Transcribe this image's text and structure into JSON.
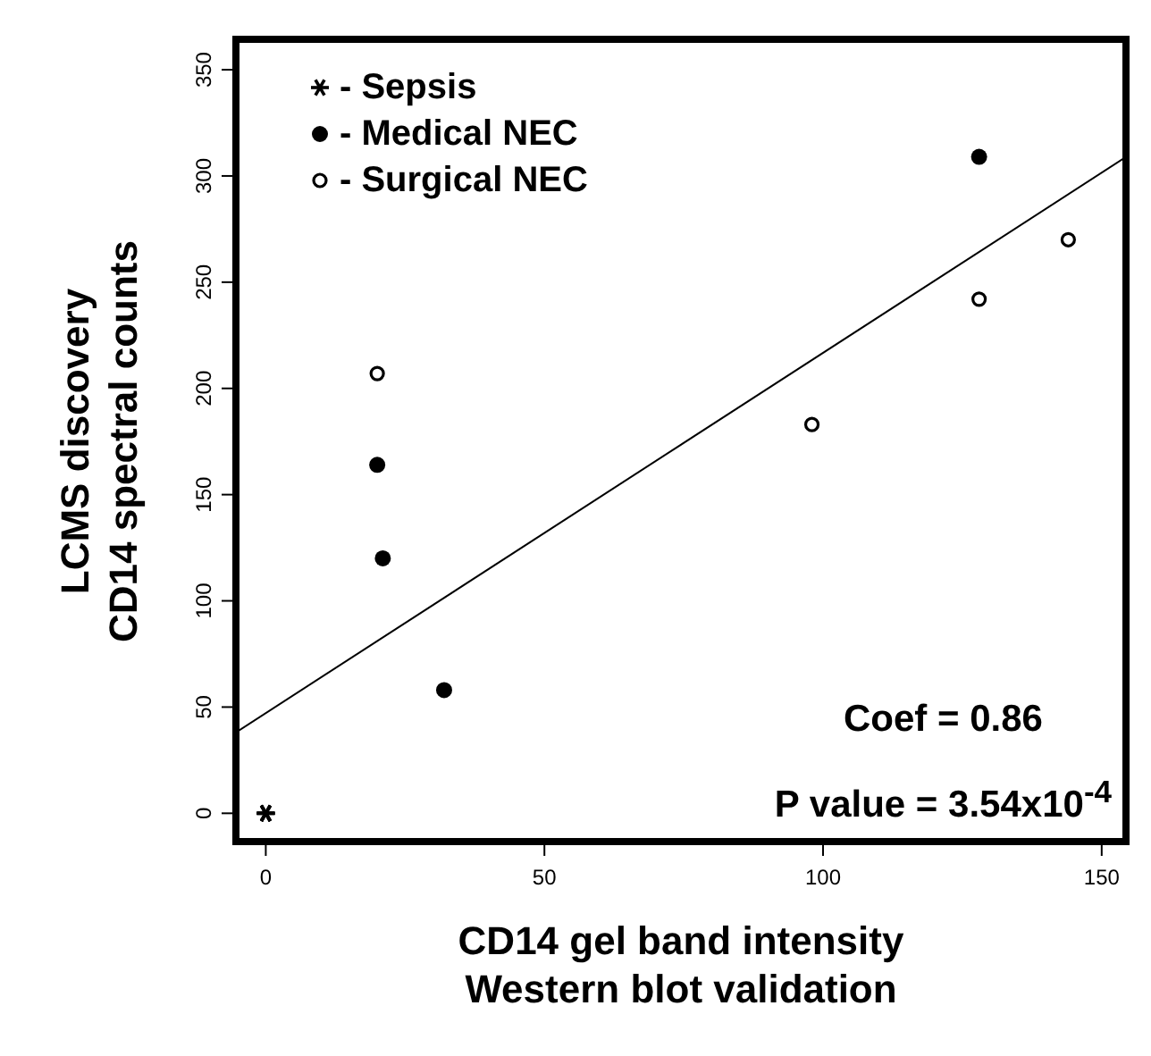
{
  "chart_data": {
    "type": "scatter",
    "xlabel": "CD14 gel band intensity\nWestern blot validation",
    "ylabel": "LCMS discovery\nCD14 spectral counts",
    "xlim": [
      -6,
      155
    ],
    "ylim": [
      -15,
      366
    ],
    "xticks": [
      0,
      50,
      100,
      150
    ],
    "yticks": [
      0,
      50,
      100,
      150,
      200,
      250,
      300,
      350
    ],
    "legend": "top left",
    "series": [
      {
        "name": "- Sepsis",
        "color": "#000000",
        "marker": "cross",
        "x": [
          0,
          0,
          0,
          0
        ],
        "values": [
          0,
          0,
          0,
          0
        ]
      },
      {
        "name": "- Medical NEC",
        "color": "#000000",
        "marker": "circle",
        "x": [
          20,
          21,
          32,
          128
        ],
        "values": [
          164,
          120,
          58,
          309
        ]
      },
      {
        "name": "- Surgical NEC",
        "color": "#000000",
        "marker": "open_circle",
        "x": [
          20,
          98,
          128,
          144
        ],
        "values": [
          207,
          183,
          242,
          270
        ]
      },
      {
        "type": "line",
        "color": "#000000",
        "marker": "none",
        "line_style": "solid",
        "x": [
          -6,
          155
        ],
        "values": [
          37,
          310
        ]
      }
    ],
    "annotations": [
      "Coef = 0.86",
      "P value = 3.54x10$^{-4}$"
    ]
  }
}
